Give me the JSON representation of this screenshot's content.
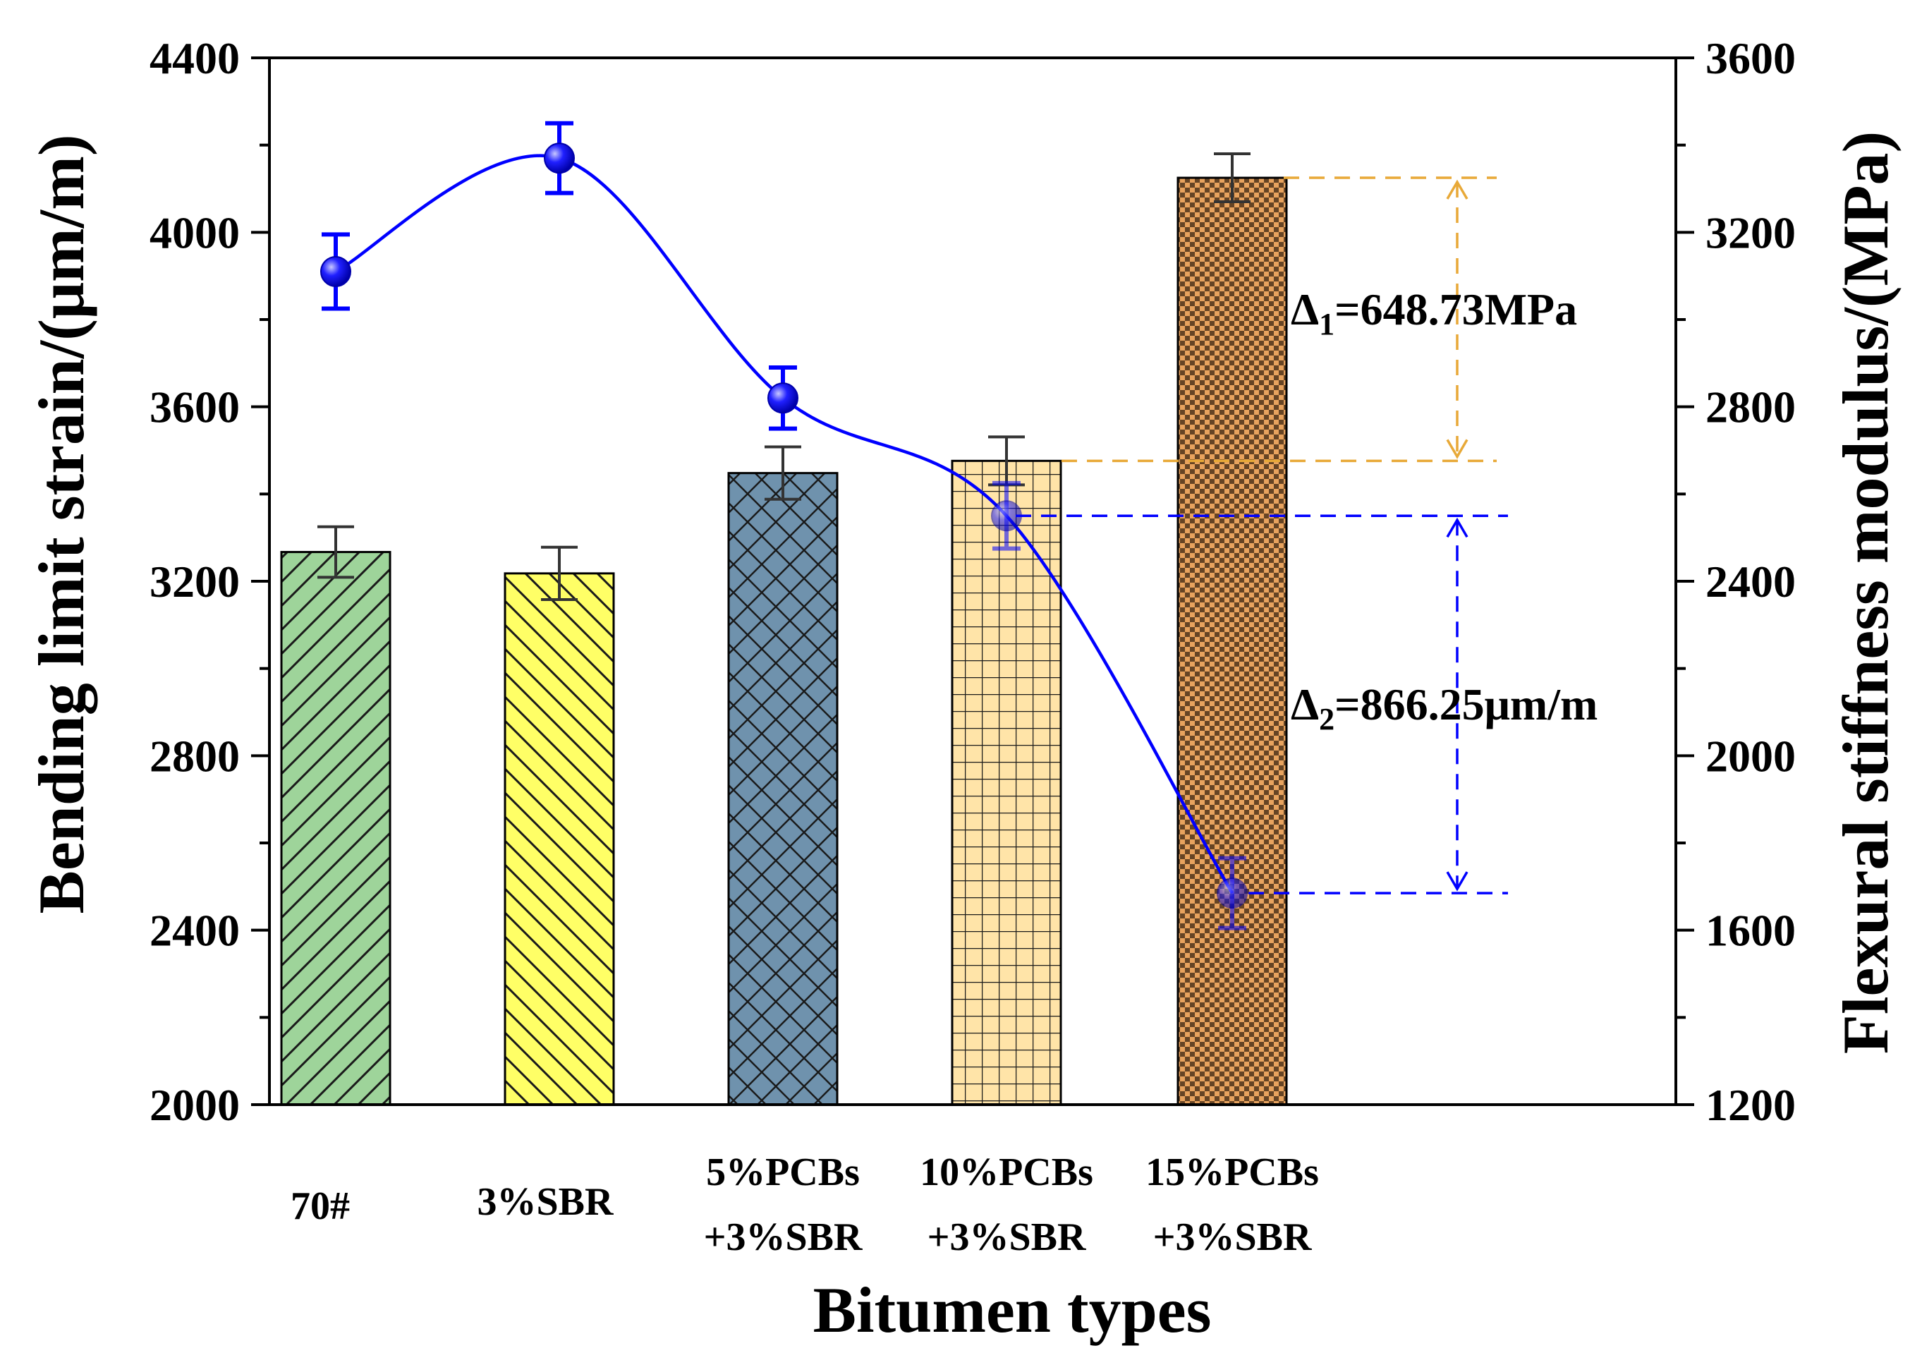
{
  "chart_data": {
    "type": "bar",
    "categories": [
      [
        "70#"
      ],
      [
        "3%SBR"
      ],
      [
        "5%PCBs",
        "+3%SBR"
      ],
      [
        "10%PCBs",
        "+3%SBR"
      ],
      [
        "15%PCBs",
        "+3%SBR"
      ]
    ],
    "xlabel": "Bitumen types",
    "ylabel_left": "Bending limit strain/(μm/m)",
    "ylabel_right": "Flexural stiffness modulus/(MPa)",
    "ylim_left": [
      2000,
      4400
    ],
    "ylim_right": [
      1200,
      3600
    ],
    "yticks_left": [
      "2000",
      "2400",
      "2800",
      "3200",
      "3600",
      "4000",
      "4400"
    ],
    "yticks_right": [
      "1200",
      "1600",
      "2000",
      "2400",
      "2800",
      "3200",
      "3600"
    ],
    "bars": {
      "name": "Flexural stiffness modulus",
      "axis": "right",
      "values": [
        2467,
        2418,
        2648,
        2676,
        3325
      ],
      "errors": [
        58,
        60,
        60,
        55,
        55
      ],
      "colors": [
        "#9ed49a",
        "#ffff66",
        "#6f92ad",
        "#ffe4a8",
        "#e8a35e"
      ],
      "patterns": [
        "diag-up",
        "diag-down",
        "crosshatch",
        "grid",
        "checker"
      ]
    },
    "line": {
      "name": "Bending limit strain",
      "axis": "left",
      "values": [
        3910,
        4170,
        3620,
        3350,
        2485
      ],
      "errors": [
        85,
        80,
        70,
        75,
        80
      ],
      "color": "#0000ff"
    },
    "annotations": [
      {
        "prefix": "Δ",
        "sub": "1",
        "text": "=648.73MPa",
        "color": "#e8a938",
        "from": 2676,
        "to": 3325,
        "axis": "right"
      },
      {
        "prefix": "Δ",
        "sub": "2",
        "text": "=866.25μm/m",
        "color": "#0000ff",
        "from": 2485,
        "to": 3350,
        "axis": "left"
      }
    ]
  }
}
